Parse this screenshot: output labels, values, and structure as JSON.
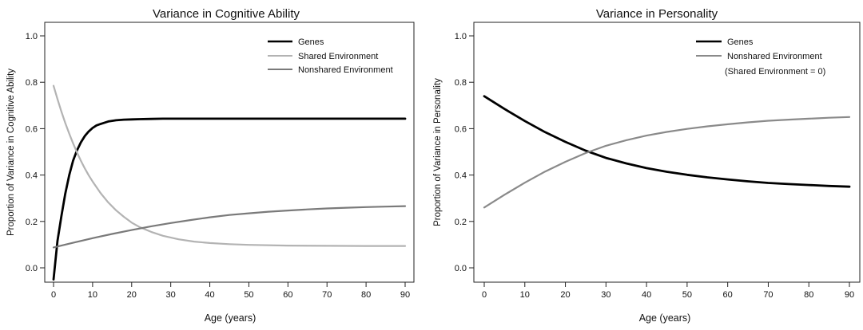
{
  "chart_data": [
    {
      "type": "line",
      "title": "Variance in Cognitive Ability",
      "xlabel": "Age (years)",
      "ylabel": "Proportion of Variance in Cognitive Ability",
      "xlim": [
        0,
        90
      ],
      "ylim": [
        0,
        1.0
      ],
      "xticks": [
        "0",
        "10",
        "20",
        "30",
        "40",
        "50",
        "60",
        "70",
        "80",
        "90"
      ],
      "yticks": [
        "0.0",
        "0.2",
        "0.4",
        "0.6",
        "0.8",
        "1.0"
      ],
      "legend_position": "top-right",
      "grid": false,
      "series": [
        {
          "name": "Genes",
          "color": "#000000",
          "x": [
            0,
            1,
            2,
            3,
            4,
            5,
            6,
            7,
            8,
            9,
            10,
            11,
            12,
            14,
            16,
            18,
            20,
            22,
            25,
            28,
            32,
            36,
            40,
            50,
            60,
            70,
            80,
            90
          ],
          "y": [
            -0.05,
            0.115,
            0.222,
            0.32,
            0.399,
            0.461,
            0.506,
            0.541,
            0.568,
            0.588,
            0.603,
            0.614,
            0.62,
            0.631,
            0.636,
            0.639,
            0.64,
            0.641,
            0.642,
            0.643,
            0.643,
            0.643,
            0.643,
            0.643,
            0.643,
            0.643,
            0.643,
            0.643
          ]
        },
        {
          "name": "Shared Environment",
          "color": "#b3b3b3",
          "x": [
            0,
            1,
            2,
            3,
            4,
            5,
            6,
            7,
            8,
            9,
            10,
            12,
            14,
            16,
            18,
            20,
            22,
            25,
            28,
            32,
            36,
            40,
            45,
            50,
            60,
            70,
            80,
            90
          ],
          "y": [
            0.785,
            0.728,
            0.674,
            0.624,
            0.579,
            0.537,
            0.498,
            0.462,
            0.429,
            0.399,
            0.372,
            0.323,
            0.282,
            0.248,
            0.22,
            0.195,
            0.176,
            0.155,
            0.138,
            0.123,
            0.113,
            0.107,
            0.102,
            0.099,
            0.096,
            0.095,
            0.094,
            0.094
          ]
        },
        {
          "name": "Nonshared Environment",
          "color": "#7a7a7a",
          "x": [
            0,
            5,
            10,
            15,
            20,
            25,
            30,
            35,
            40,
            45,
            50,
            55,
            60,
            65,
            70,
            75,
            80,
            85,
            90
          ],
          "y": [
            0.088,
            0.108,
            0.128,
            0.146,
            0.163,
            0.179,
            0.193,
            0.206,
            0.218,
            0.228,
            0.235,
            0.242,
            0.247,
            0.252,
            0.256,
            0.259,
            0.262,
            0.264,
            0.266
          ]
        }
      ],
      "legend_note": ""
    },
    {
      "type": "line",
      "title": "Variance in Personality",
      "xlabel": "Age (years)",
      "ylabel": "Proportion of Variance in Personality",
      "xlim": [
        0,
        90
      ],
      "ylim": [
        0,
        1.0
      ],
      "xticks": [
        "0",
        "10",
        "20",
        "30",
        "40",
        "50",
        "60",
        "70",
        "80",
        "90"
      ],
      "yticks": [
        "0.0",
        "0.2",
        "0.4",
        "0.6",
        "0.8",
        "1.0"
      ],
      "legend_position": "top-right",
      "grid": false,
      "series": [
        {
          "name": "Genes",
          "color": "#000000",
          "x": [
            0,
            5,
            10,
            15,
            20,
            25,
            30,
            35,
            40,
            45,
            50,
            55,
            60,
            65,
            70,
            75,
            80,
            85,
            90
          ],
          "y": [
            0.74,
            0.685,
            0.633,
            0.585,
            0.543,
            0.505,
            0.474,
            0.45,
            0.43,
            0.414,
            0.401,
            0.39,
            0.381,
            0.373,
            0.366,
            0.361,
            0.357,
            0.353,
            0.35
          ]
        },
        {
          "name": "Nonshared Environment",
          "color": "#8a8a8a",
          "x": [
            0,
            5,
            10,
            15,
            20,
            25,
            30,
            35,
            40,
            45,
            50,
            55,
            60,
            65,
            70,
            75,
            80,
            85,
            90
          ],
          "y": [
            0.26,
            0.315,
            0.367,
            0.415,
            0.457,
            0.495,
            0.526,
            0.55,
            0.57,
            0.586,
            0.599,
            0.61,
            0.619,
            0.627,
            0.634,
            0.639,
            0.643,
            0.647,
            0.65
          ]
        }
      ],
      "legend_note": "(Shared Environment = 0)"
    }
  ]
}
